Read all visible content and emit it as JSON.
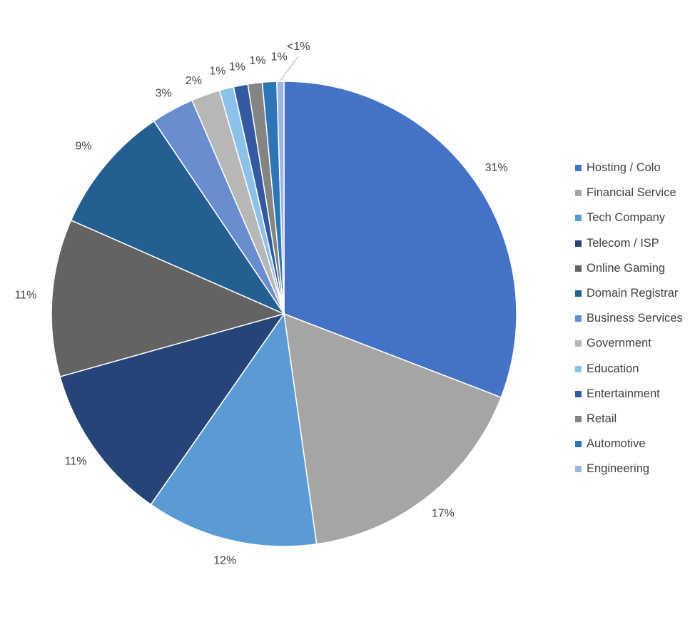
{
  "chart_data": {
    "type": "pie",
    "title": "",
    "categories": [
      "Hosting / Colo",
      "Financial Service",
      "Tech Company",
      "Telecom / ISP",
      "Online Gaming",
      "Domain Registrar",
      "Business Services",
      "Government",
      "Education",
      "Entertainment",
      "Retail",
      "Automotive",
      "Engineering"
    ],
    "values": [
      31,
      17,
      12,
      11,
      11,
      9,
      3,
      2,
      1,
      1,
      1,
      1,
      0.5
    ],
    "data_labels": [
      "31%",
      "17%",
      "12%",
      "11%",
      "11%",
      "9%",
      "3%",
      "2%",
      "1%",
      "1%",
      "1%",
      "1%",
      "<1%"
    ],
    "colors": [
      "#4472C4",
      "#A5A5A5",
      "#5B9BD5",
      "#264478",
      "#636363",
      "#255E91",
      "#698ED0",
      "#B7B7B7",
      "#8CC1EA",
      "#335AA1",
      "#848484",
      "#2E75B6",
      "#9DB5E4"
    ],
    "start_angle_deg": 0,
    "direction": "clockwise",
    "legend_position": "right"
  }
}
